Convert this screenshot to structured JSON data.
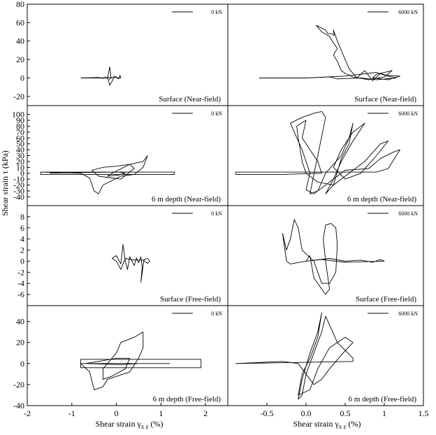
{
  "chart_data": {
    "type": "line",
    "ylabel": "Shear strain τ (kPa)",
    "colors": {
      "line": "#000000",
      "frame": "#000000",
      "background": "#ffffff"
    },
    "columns": [
      {
        "xlim": [
          -2,
          2.5
        ],
        "xticks": [
          -2,
          -1,
          0,
          1,
          2
        ],
        "xlabel": "Shear strain γxz (%)",
        "xlabel_main": "Shear strain γ",
        "xlabel_sub": "x z",
        "xlabel_unit": " (%)"
      },
      {
        "xlim": [
          -1,
          1.5
        ],
        "xticks": [
          -0.5,
          0.0,
          0.5,
          1,
          1.5
        ],
        "xtick_labels": [
          "-0.5",
          "0.0",
          "0.5",
          "1",
          "1.5"
        ],
        "xlabel": "Shear strain γxz (%)",
        "xlabel_main": "Shear strain γ",
        "xlabel_sub": "x z",
        "xlabel_unit": " (%)"
      }
    ],
    "rows": [
      {
        "ylim": [
          -30,
          80
        ],
        "yticks": [
          -20,
          0,
          20,
          40,
          60,
          80
        ]
      },
      {
        "ylim": [
          -55,
          115
        ],
        "yticks": [
          -40,
          -30,
          -20,
          -10,
          0,
          10,
          20,
          30,
          40,
          50,
          60,
          70,
          80,
          90,
          100
        ],
        "ytick_labels": [
          "-40",
          "-30",
          "-20",
          "-10",
          "0",
          "10",
          "20",
          "30",
          "40",
          "50",
          "60",
          "70",
          "80",
          "90",
          "100"
        ]
      },
      {
        "ylim": [
          -8,
          10
        ],
        "yticks": [
          -6,
          -4,
          -2,
          0,
          2,
          4,
          6,
          8
        ]
      },
      {
        "ylim": [
          -40,
          55
        ],
        "yticks": [
          -40,
          -20,
          0,
          20,
          40
        ]
      }
    ],
    "panels": [
      {
        "row": 0,
        "col": 0,
        "legend": "0 kN",
        "annotation": "Surface (Near-field)",
        "series": [
          [
            -0.8,
            0
          ],
          [
            -0.4,
            0.5
          ],
          [
            -0.3,
            -0.5
          ],
          [
            -0.25,
            1
          ],
          [
            -0.2,
            -1
          ],
          [
            -0.15,
            12
          ],
          [
            -0.12,
            0
          ],
          [
            -0.18,
            -2
          ],
          [
            -0.15,
            -8
          ],
          [
            -0.1,
            -4
          ],
          [
            -0.05,
            2
          ],
          [
            0,
            1
          ],
          [
            0.05,
            -1
          ],
          [
            0.08,
            3
          ],
          [
            0.1,
            0
          ],
          [
            -0.1,
            0.5
          ],
          [
            -0.4,
            0
          ],
          [
            -0.8,
            0
          ]
        ]
      },
      {
        "row": 0,
        "col": 1,
        "legend": "6000 kN",
        "annotation": "Surface (Near-field)",
        "series": [
          [
            -0.6,
            0
          ],
          [
            0,
            0
          ],
          [
            0.5,
            2
          ],
          [
            0.7,
            4
          ],
          [
            0.9,
            6
          ],
          [
            1.0,
            3
          ],
          [
            1.2,
            2
          ],
          [
            1.05,
            -2
          ],
          [
            0.85,
            0
          ],
          [
            0.9,
            4
          ],
          [
            1.1,
            8
          ],
          [
            1.0,
            1
          ],
          [
            0.8,
            -2
          ],
          [
            0.6,
            1
          ],
          [
            0.5,
            5
          ],
          [
            0.45,
            8
          ],
          [
            0.4,
            18
          ],
          [
            0.35,
            25
          ],
          [
            0.4,
            32
          ],
          [
            0.35,
            38
          ],
          [
            0.3,
            45
          ],
          [
            0.2,
            50
          ],
          [
            0.13,
            57
          ],
          [
            0.25,
            52
          ],
          [
            0.28,
            48
          ],
          [
            0.33,
            48
          ],
          [
            0.36,
            46
          ],
          [
            0.35,
            52
          ],
          [
            0.4,
            40
          ],
          [
            0.45,
            30
          ],
          [
            0.5,
            20
          ],
          [
            0.55,
            10
          ],
          [
            0.6,
            5
          ],
          [
            0.65,
            0
          ],
          [
            0.75,
            8
          ],
          [
            0.85,
            -3
          ],
          [
            0.95,
            5
          ],
          [
            1.05,
            2
          ],
          [
            1.15,
            0
          ],
          [
            0.9,
            -2
          ],
          [
            0.7,
            0
          ],
          [
            0.4,
            -1
          ],
          [
            0.3,
            1
          ],
          [
            0,
            0
          ]
        ]
      },
      {
        "row": 1,
        "col": 0,
        "legend": "0 kN",
        "annotation": "6 m depth (Near-field)",
        "series": [
          [
            -1.7,
            2
          ],
          [
            1.3,
            2
          ],
          [
            1.3,
            -2
          ],
          [
            -1.7,
            -2
          ],
          [
            -1.7,
            2
          ],
          [
            -0.8,
            0
          ],
          [
            -0.6,
            -8
          ],
          [
            -0.5,
            -30
          ],
          [
            -0.4,
            -35
          ],
          [
            -0.3,
            -20
          ],
          [
            0.1,
            -5
          ],
          [
            0.4,
            -2
          ],
          [
            0.6,
            10
          ],
          [
            0.7,
            30
          ],
          [
            0.6,
            20
          ],
          [
            0.3,
            15
          ],
          [
            0,
            12
          ],
          [
            -0.3,
            10
          ],
          [
            -0.55,
            5
          ],
          [
            -0.4,
            -5
          ],
          [
            -0.1,
            -8
          ],
          [
            0.1,
            -10
          ],
          [
            0.4,
            8
          ],
          [
            0.3,
            15
          ],
          [
            -0.1,
            0
          ],
          [
            -0.2,
            -5
          ],
          [
            0.05,
            -3
          ],
          [
            0.2,
            0
          ],
          [
            0.05,
            2
          ],
          [
            -1.0,
            1
          ],
          [
            -1.5,
            0
          ]
        ]
      },
      {
        "row": 1,
        "col": 1,
        "legend": "6000 kN",
        "annotation": "6 m depth (Near-field)",
        "series": [
          [
            -0.9,
            2
          ],
          [
            0.9,
            2
          ],
          [
            1.05,
            8
          ],
          [
            1.2,
            40
          ],
          [
            1.1,
            35
          ],
          [
            0.95,
            25
          ],
          [
            0.8,
            8
          ],
          [
            0.5,
            5
          ],
          [
            0.35,
            -10
          ],
          [
            0.1,
            -35
          ],
          [
            0,
            -28
          ],
          [
            0.05,
            0
          ],
          [
            -0.05,
            40
          ],
          [
            -0.15,
            70
          ],
          [
            -0.2,
            85
          ],
          [
            -0.05,
            95
          ],
          [
            0.1,
            102
          ],
          [
            0.2,
            105
          ],
          [
            0.25,
            95
          ],
          [
            0.15,
            30
          ],
          [
            0.05,
            -35
          ],
          [
            0.15,
            -30
          ],
          [
            0.25,
            0
          ],
          [
            0.45,
            30
          ],
          [
            0.55,
            60
          ],
          [
            0.6,
            85
          ],
          [
            0.55,
            50
          ],
          [
            0.45,
            25
          ],
          [
            0.35,
            -20
          ],
          [
            0.25,
            -35
          ],
          [
            0.35,
            -10
          ],
          [
            0.45,
            20
          ],
          [
            0.6,
            55
          ],
          [
            0.75,
            85
          ],
          [
            0.6,
            70
          ],
          [
            0.45,
            40
          ],
          [
            0.35,
            10
          ],
          [
            0.5,
            -10
          ],
          [
            0.7,
            0
          ],
          [
            0.9,
            30
          ],
          [
            1.05,
            55
          ],
          [
            0.95,
            50
          ],
          [
            0.75,
            20
          ],
          [
            0.5,
            -5
          ],
          [
            0.35,
            -20
          ],
          [
            0.15,
            -15
          ],
          [
            0,
            0
          ],
          [
            -0.05,
            20
          ],
          [
            -0.1,
            60
          ],
          [
            -0.12,
            80
          ],
          [
            0,
            90
          ],
          [
            -0.05,
            60
          ],
          [
            0.15,
            20
          ],
          [
            0.2,
            0
          ],
          [
            -0.3,
            -2
          ],
          [
            -0.9,
            -2
          ],
          [
            -0.9,
            2
          ]
        ]
      },
      {
        "row": 2,
        "col": 0,
        "legend": "0 kN",
        "annotation": "Surface (Free-field)",
        "series": [
          [
            -0.1,
            0.5
          ],
          [
            0,
            1
          ],
          [
            0.1,
            -0.5
          ],
          [
            0.15,
            3
          ],
          [
            0.2,
            0
          ],
          [
            0.25,
            -1.5
          ],
          [
            0.3,
            0.8
          ],
          [
            0.35,
            0
          ],
          [
            0.4,
            -0.8
          ],
          [
            0.45,
            0.6
          ],
          [
            0.5,
            -0.3
          ],
          [
            0.55,
            0.8
          ],
          [
            0.58,
            -1
          ],
          [
            0.55,
            -3.8
          ],
          [
            0.62,
            0.3
          ],
          [
            0.7,
            0.5
          ],
          [
            0.75,
            0
          ],
          [
            0.7,
            -0.4
          ],
          [
            0.6,
            0.2
          ],
          [
            0.4,
            0.2
          ],
          [
            0.2,
            0.5
          ],
          [
            0.1,
            -1.5
          ],
          [
            0,
            0
          ],
          [
            -0.1,
            0.5
          ]
        ]
      },
      {
        "row": 2,
        "col": 1,
        "legend": "6000 kN",
        "annotation": "Surface (Free-field)",
        "series": [
          [
            0,
            0
          ],
          [
            0.05,
            1
          ],
          [
            0.1,
            -3
          ],
          [
            0.15,
            -4
          ],
          [
            0.2,
            -5
          ],
          [
            0.25,
            -6
          ],
          [
            0.3,
            -5
          ],
          [
            0.25,
            0
          ],
          [
            0.22,
            4
          ],
          [
            0.25,
            6.5
          ],
          [
            0.32,
            6.8
          ],
          [
            0.38,
            6
          ],
          [
            0.4,
            3
          ],
          [
            0.38,
            -2
          ],
          [
            0.3,
            -4
          ],
          [
            0.2,
            -4
          ],
          [
            0.15,
            -2
          ],
          [
            0.1,
            0
          ],
          [
            -0.05,
            2
          ],
          [
            -0.1,
            6
          ],
          [
            -0.15,
            7.5
          ],
          [
            -0.2,
            4
          ],
          [
            -0.25,
            2
          ],
          [
            -0.3,
            5
          ],
          [
            -0.25,
            0
          ],
          [
            -0.2,
            -0.5
          ],
          [
            0,
            0
          ],
          [
            0.3,
            0.5
          ],
          [
            0.5,
            0
          ],
          [
            0.7,
            0.2
          ],
          [
            0.85,
            -0.2
          ],
          [
            0.95,
            0.3
          ],
          [
            1.0,
            0
          ],
          [
            0.5,
            -0.2
          ],
          [
            0.2,
            0.3
          ],
          [
            0,
            0
          ]
        ]
      },
      {
        "row": 3,
        "col": 0,
        "legend": "0 kN",
        "annotation": "6 m depth (Free-field)",
        "series": [
          [
            -0.8,
            0
          ],
          [
            -0.8,
            -4
          ],
          [
            1.9,
            -4
          ],
          [
            1.9,
            4
          ],
          [
            -0.8,
            4
          ],
          [
            -0.8,
            0
          ],
          [
            -0.6,
            -8
          ],
          [
            -0.5,
            -25
          ],
          [
            -0.3,
            -22
          ],
          [
            -0.2,
            -15
          ],
          [
            0.3,
            -8
          ],
          [
            0.5,
            5
          ],
          [
            0.6,
            15
          ],
          [
            0.6,
            30
          ],
          [
            0.4,
            25
          ],
          [
            0.1,
            20
          ],
          [
            0,
            10
          ],
          [
            -0.3,
            -5
          ],
          [
            -0.3,
            -15
          ],
          [
            -0.1,
            -12
          ],
          [
            0.2,
            -5
          ],
          [
            0.3,
            5
          ],
          [
            0,
            5
          ],
          [
            -0.4,
            2
          ],
          [
            -0.7,
            0
          ],
          [
            0.1,
            -1
          ],
          [
            0.5,
            0
          ],
          [
            1.2,
            0
          ],
          [
            -0.8,
            0
          ]
        ]
      },
      {
        "row": 3,
        "col": 1,
        "legend": "6000 kN",
        "annotation": "6 m depth (Free-field)",
        "series": [
          [
            -0.9,
            0
          ],
          [
            0.6,
            2
          ],
          [
            0.6,
            5
          ],
          [
            0.4,
            20
          ],
          [
            0.25,
            45
          ],
          [
            0.2,
            30
          ],
          [
            0.1,
            10
          ],
          [
            0,
            -10
          ],
          [
            -0.05,
            -30
          ],
          [
            -0.1,
            -34
          ],
          [
            -0.05,
            -15
          ],
          [
            0.05,
            10
          ],
          [
            0.15,
            30
          ],
          [
            0.2,
            48
          ],
          [
            0.15,
            25
          ],
          [
            0.05,
            5
          ],
          [
            -0.05,
            -10
          ],
          [
            -0.1,
            -30
          ],
          [
            0.05,
            -25
          ],
          [
            0.15,
            -5
          ],
          [
            0.3,
            15
          ],
          [
            0.5,
            25
          ],
          [
            0.6,
            20
          ],
          [
            0.45,
            8
          ],
          [
            0.3,
            -5
          ],
          [
            0.2,
            -15
          ],
          [
            0.1,
            -20
          ],
          [
            0,
            -10
          ],
          [
            -0.1,
            0
          ],
          [
            -0.3,
            2
          ],
          [
            -0.9,
            0
          ]
        ]
      }
    ]
  }
}
